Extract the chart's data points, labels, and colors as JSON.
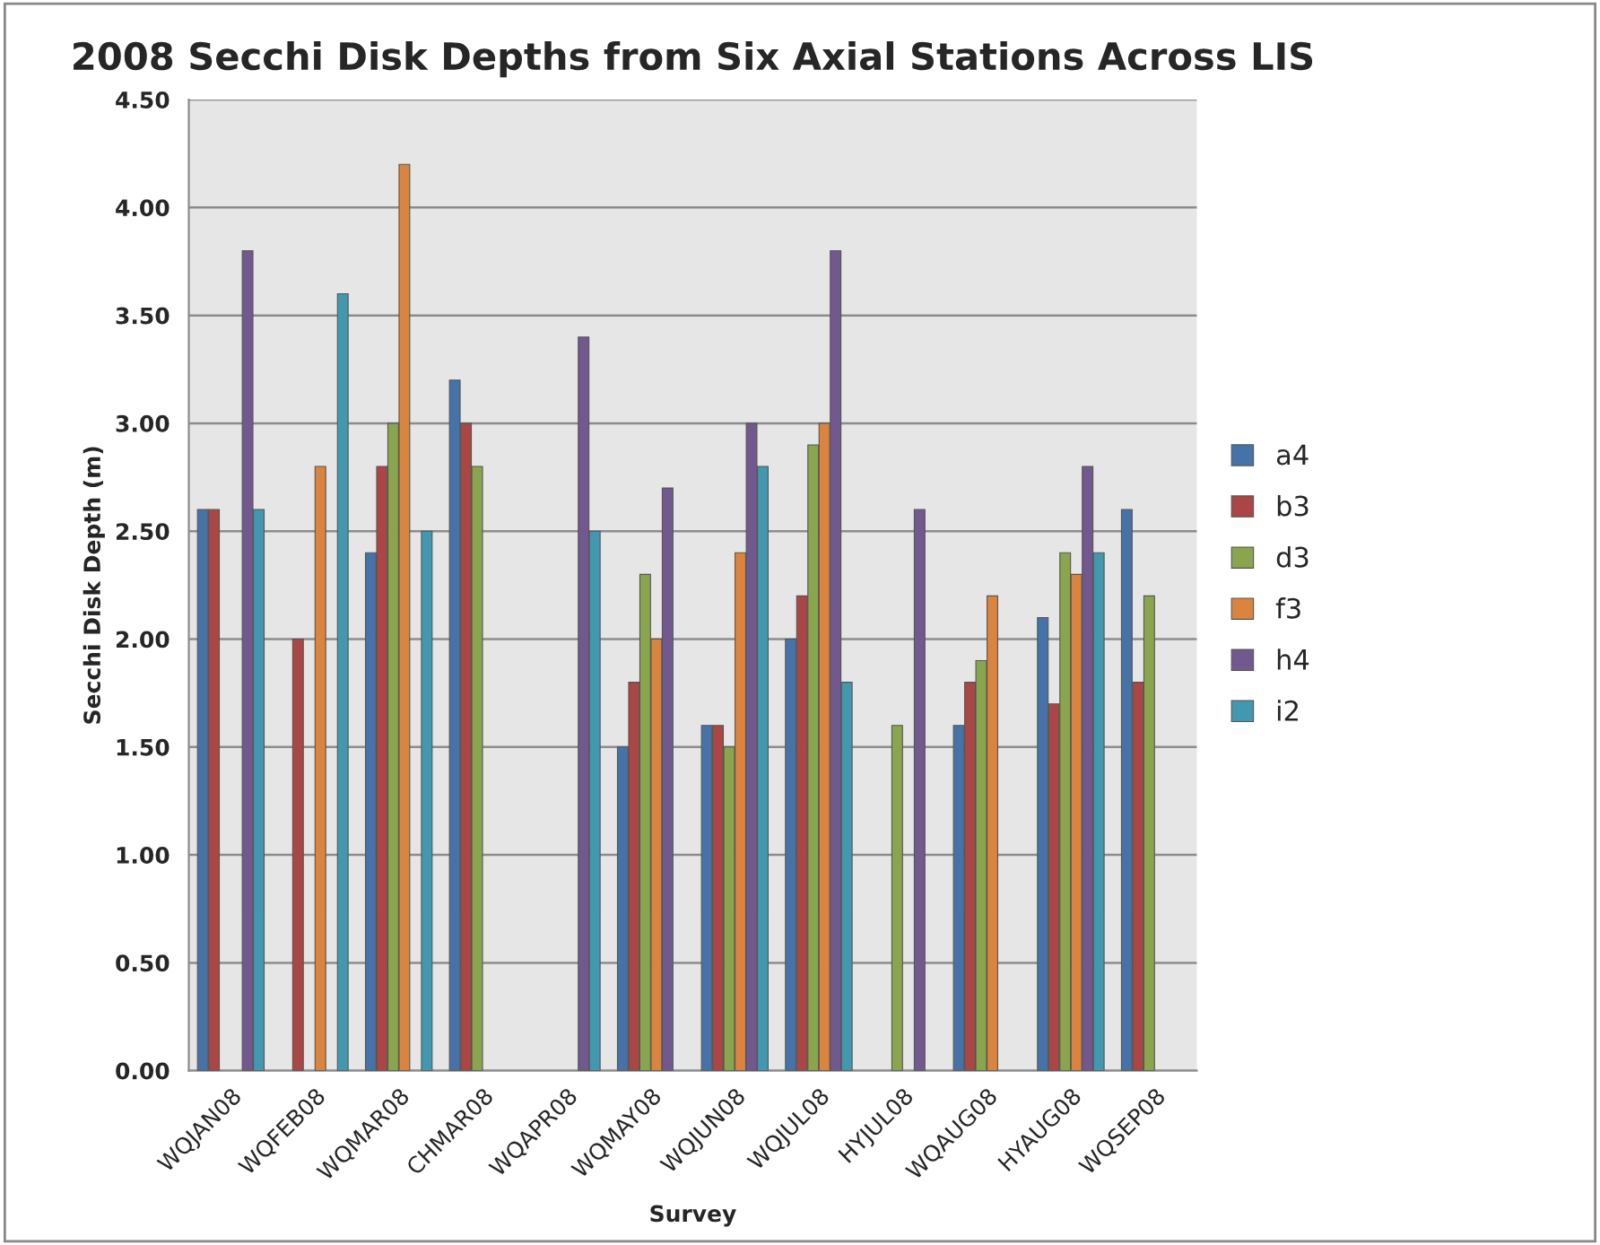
{
  "chart_data": {
    "type": "bar",
    "title": "2008 Secchi Disk Depths from Six Axial Stations Across LIS",
    "xlabel": "Survey",
    "ylabel": "Secchi Disk Depth (m)",
    "categories": [
      "WQJAN08",
      "WQFEB08",
      "WQMAR08",
      "CHMAR08",
      "WQAPR08",
      "WQMAY08",
      "WQJUN08",
      "WQJUL08",
      "HYJUL08",
      "WQAUG08",
      "HYAUG08",
      "WQSEP08"
    ],
    "series": [
      {
        "name": "a4",
        "color": "#4572a7",
        "values": [
          2.6,
          null,
          2.4,
          3.2,
          null,
          1.5,
          1.6,
          2.0,
          null,
          1.6,
          2.1,
          2.6
        ]
      },
      {
        "name": "b3",
        "color": "#aa4643",
        "values": [
          2.6,
          2.0,
          2.8,
          3.0,
          null,
          1.8,
          1.6,
          2.2,
          null,
          1.8,
          1.7,
          1.8
        ]
      },
      {
        "name": "d3",
        "color": "#89a54e",
        "values": [
          null,
          null,
          3.0,
          2.8,
          null,
          2.3,
          1.5,
          2.9,
          1.6,
          1.9,
          2.4,
          2.2
        ]
      },
      {
        "name": "f3",
        "color": "#db843d",
        "values": [
          null,
          2.8,
          4.2,
          null,
          null,
          2.0,
          2.4,
          3.0,
          null,
          2.2,
          2.3,
          null
        ]
      },
      {
        "name": "h4",
        "color": "#71588f",
        "values": [
          3.8,
          null,
          null,
          null,
          3.4,
          2.7,
          3.0,
          3.8,
          2.6,
          null,
          2.8,
          null
        ]
      },
      {
        "name": "i2",
        "color": "#4198af",
        "values": [
          2.6,
          3.6,
          2.5,
          null,
          2.5,
          null,
          2.8,
          1.8,
          null,
          null,
          2.4,
          null
        ]
      }
    ],
    "ylim": [
      0,
      4.5
    ],
    "yticks": [
      {
        "value": 0,
        "label": "0.00"
      },
      {
        "value": 0.5,
        "label": "0.50"
      },
      {
        "value": 1,
        "label": "1.00"
      },
      {
        "value": 1.5,
        "label": "1.50"
      },
      {
        "value": 2,
        "label": "2.00"
      },
      {
        "value": 2.5,
        "label": "2.50"
      },
      {
        "value": 3,
        "label": "3.00"
      },
      {
        "value": 3.5,
        "label": "3.50"
      },
      {
        "value": 4,
        "label": "4.00"
      },
      {
        "value": 4.5,
        "label": "4.50"
      }
    ],
    "grid": "y",
    "legend": "right"
  }
}
